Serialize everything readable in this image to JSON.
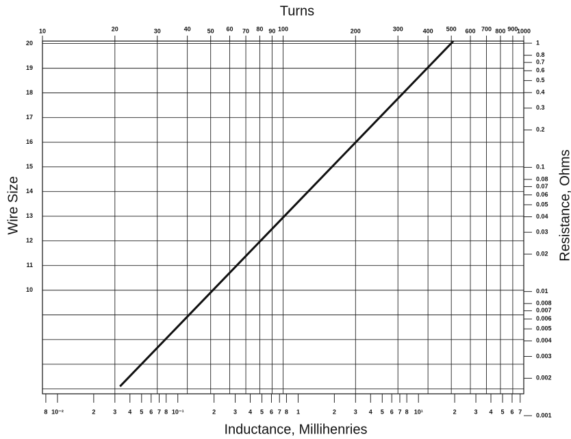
{
  "chart_data": {
    "type": "line",
    "title": "Turns",
    "xlabel": "Inductance, Millihenries",
    "ylabel": "Wire Size",
    "y2label": "Resistance, Ohms",
    "x2log": true,
    "xlog": true,
    "y2log": true,
    "grid": true,
    "x2lim": [
      10,
      1000
    ],
    "x2ticks": [
      10,
      20,
      30,
      40,
      50,
      60,
      70,
      80,
      90,
      100,
      200,
      300,
      400,
      500,
      600,
      700,
      800,
      900,
      1000
    ],
    "xlim": [
      0.0075,
      75
    ],
    "xticks": [
      {
        "value": 0.008,
        "label": "8"
      },
      {
        "value": 0.01,
        "label": "10⁻²"
      },
      {
        "value": 0.02,
        "label": "2"
      },
      {
        "value": 0.03,
        "label": "3"
      },
      {
        "value": 0.04,
        "label": "4"
      },
      {
        "value": 0.05,
        "label": "5"
      },
      {
        "value": 0.06,
        "label": "6"
      },
      {
        "value": 0.07,
        "label": "7"
      },
      {
        "value": 0.08,
        "label": "8"
      },
      {
        "value": 0.1,
        "label": "10⁻¹"
      },
      {
        "value": 0.2,
        "label": "2"
      },
      {
        "value": 0.3,
        "label": "3"
      },
      {
        "value": 0.4,
        "label": "4"
      },
      {
        "value": 0.5,
        "label": "5"
      },
      {
        "value": 0.6,
        "label": "6"
      },
      {
        "value": 0.7,
        "label": "7"
      },
      {
        "value": 0.8,
        "label": "8"
      },
      1,
      2,
      3,
      4,
      5,
      6,
      7,
      8,
      {
        "value": 10,
        "label": "10¹"
      },
      {
        "value": 20,
        "label": "2"
      },
      {
        "value": 30,
        "label": "3"
      },
      {
        "value": 40,
        "label": "4"
      },
      {
        "value": 50,
        "label": "5"
      },
      {
        "value": 60,
        "label": "6"
      },
      {
        "value": 70,
        "label": "7"
      }
    ],
    "ylim": [
      5.8,
      20.1
    ],
    "yticks": [
      10,
      11,
      12,
      13,
      14,
      15,
      16,
      17,
      18,
      19,
      20
    ],
    "yminor": [
      6,
      7,
      8,
      9
    ],
    "y2lim": [
      0.0015,
      1.04
    ],
    "y2ticks": [
      1,
      0.8,
      0.7,
      0.6,
      0.5,
      0.4,
      0.3,
      0.2,
      0.1,
      0.08,
      0.07,
      0.06,
      0.05,
      0.04,
      0.03,
      0.02,
      0.01,
      0.008,
      0.007,
      0.006,
      0.005,
      0.004,
      0.003,
      0.002,
      0.001
    ],
    "x": [
      21,
      510
    ],
    "series": [
      {
        "color": "#111111",
        "values": [
          6.1,
          20.1
        ]
      }
    ]
  }
}
